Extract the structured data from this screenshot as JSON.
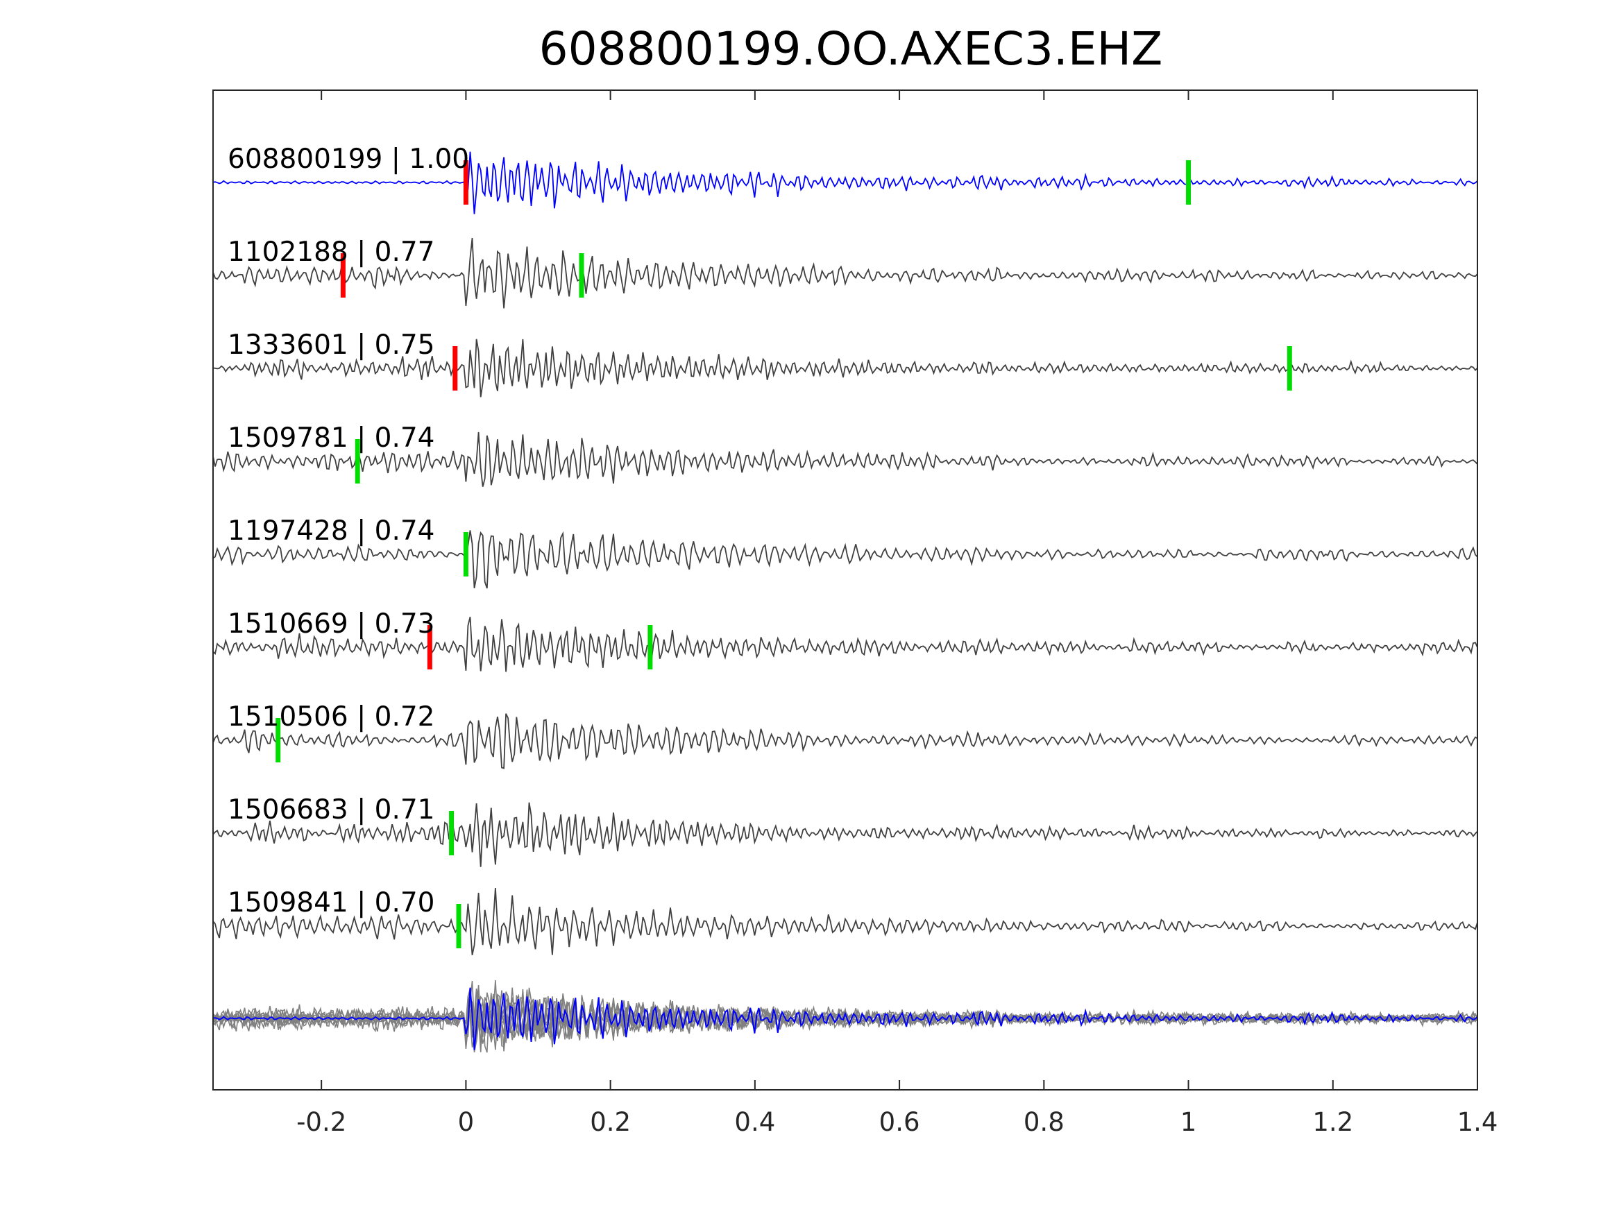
{
  "chart_data": {
    "type": "line",
    "title": "608800199.OO.AXEC3.EHZ",
    "xlabel": "",
    "ylabel": "",
    "xlim": [
      -0.35,
      1.4
    ],
    "xticks": [
      -0.2,
      0,
      0.2,
      0.4,
      0.6,
      0.8,
      1,
      1.2,
      1.4
    ],
    "xtick_labels": [
      "-0.2",
      "0",
      "0.2",
      "0.4",
      "0.6",
      "0.8",
      "1",
      "1.2",
      "1.4"
    ],
    "grid": false,
    "legend": "none",
    "colors": {
      "master": "#0000ff",
      "trace": "#404040",
      "stack": "#808080",
      "p_pick": "#ff0000",
      "s_pick": "#00dd00"
    },
    "series": [
      {
        "label": "608800199 | 1.00",
        "p_pick": 0.0,
        "s_pick": 1.0,
        "master": true
      },
      {
        "label": "1102188 | 0.77",
        "p_pick": -0.17,
        "s_pick": 0.16
      },
      {
        "label": "1333601 | 0.75",
        "p_pick": -0.015,
        "s_pick": 1.14
      },
      {
        "label": "1509781 | 0.74",
        "p_pick": null,
        "s_pick": -0.15
      },
      {
        "label": "1197428 | 0.74",
        "p_pick": null,
        "s_pick": 0.0
      },
      {
        "label": "1510669 | 0.73",
        "p_pick": -0.05,
        "s_pick": 0.255
      },
      {
        "label": "1510506 | 0.72",
        "p_pick": null,
        "s_pick": -0.26
      },
      {
        "label": "1506683 | 0.71",
        "p_pick": null,
        "s_pick": -0.02
      },
      {
        "label": "1509841 | 0.70",
        "p_pick": null,
        "s_pick": -0.01
      }
    ],
    "stack": {
      "overlay": true,
      "count": 9
    }
  }
}
